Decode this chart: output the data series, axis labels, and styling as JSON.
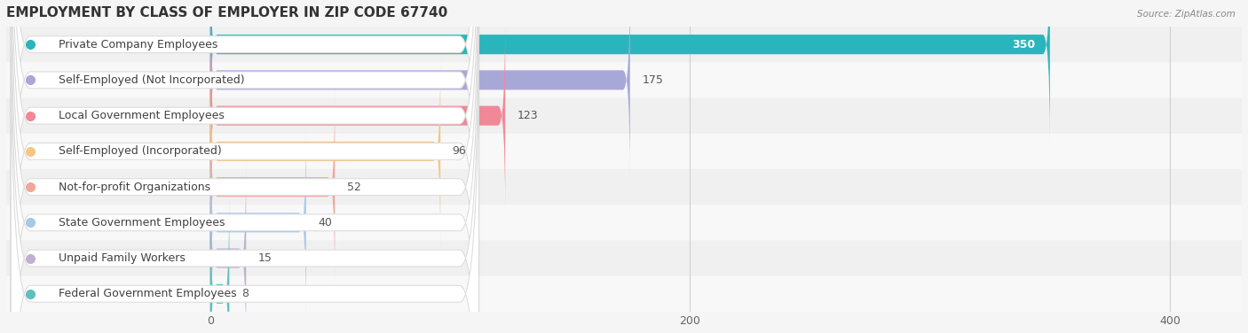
{
  "title": "EMPLOYMENT BY CLASS OF EMPLOYER IN ZIP CODE 67740",
  "source": "Source: ZipAtlas.com",
  "categories": [
    "Private Company Employees",
    "Self-Employed (Not Incorporated)",
    "Local Government Employees",
    "Self-Employed (Incorporated)",
    "Not-for-profit Organizations",
    "State Government Employees",
    "Unpaid Family Workers",
    "Federal Government Employees"
  ],
  "values": [
    350,
    175,
    123,
    96,
    52,
    40,
    15,
    8
  ],
  "bar_colors": [
    "#2ab5bc",
    "#a8a8d8",
    "#f08898",
    "#f5c882",
    "#f0a898",
    "#a8c8e8",
    "#c0b0d0",
    "#60c0c0"
  ],
  "row_bg_colors": [
    "#f0f0f0",
    "#f8f8f8"
  ],
  "xlim_min": -85,
  "xlim_max": 430,
  "xticks": [
    0,
    200,
    400
  ],
  "background_color": "#f5f5f5",
  "title_fontsize": 11,
  "label_fontsize": 9,
  "value_fontsize": 9,
  "figsize": [
    14.06,
    3.76
  ]
}
